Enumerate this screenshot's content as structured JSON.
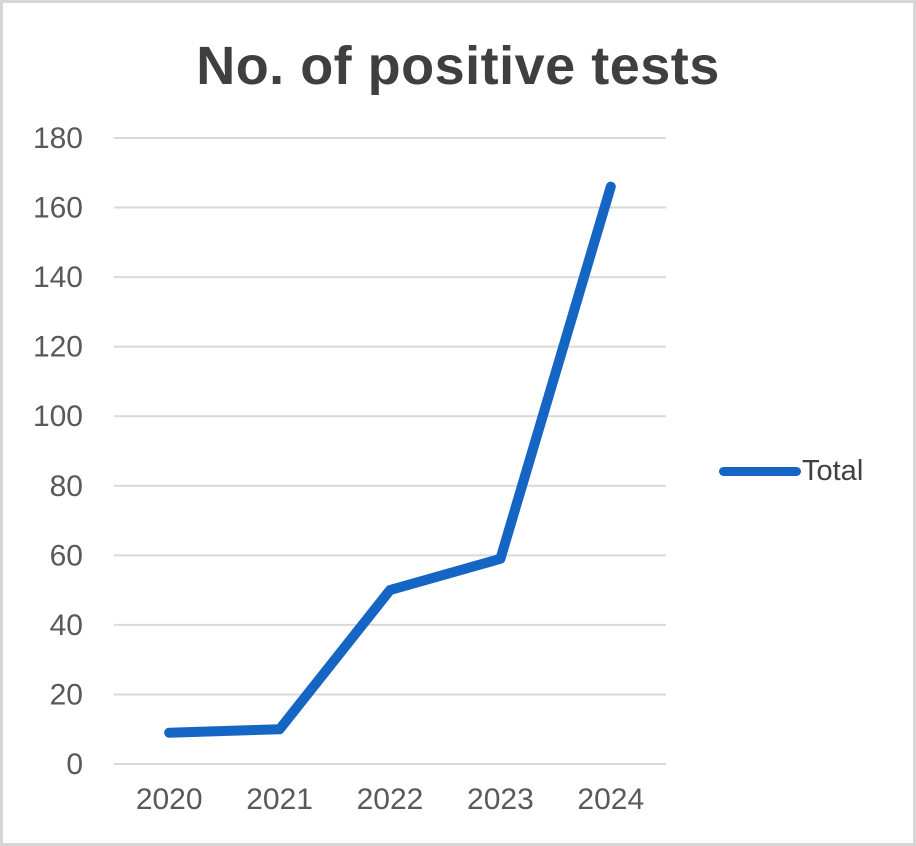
{
  "chart_data": {
    "type": "line",
    "title": "No. of positive tests",
    "categories": [
      "2020",
      "2021",
      "2022",
      "2023",
      "2024"
    ],
    "series": [
      {
        "name": "Total",
        "values": [
          9,
          10,
          50,
          59,
          166
        ]
      }
    ],
    "xlabel": "",
    "ylabel": "",
    "ylim": [
      0,
      180
    ],
    "ytick_step": 20,
    "yticks": [
      0,
      20,
      40,
      60,
      80,
      100,
      120,
      140,
      160,
      180
    ],
    "grid": true,
    "gridlines": "horizontal",
    "legend_position": "right",
    "colors": {
      "series_line": "#1565c5",
      "gridline": "#d9d9d9",
      "tick_label": "#595959",
      "title": "#3f3f3f",
      "frame_border": "#d6d6d6",
      "background": "#ffffff"
    }
  }
}
